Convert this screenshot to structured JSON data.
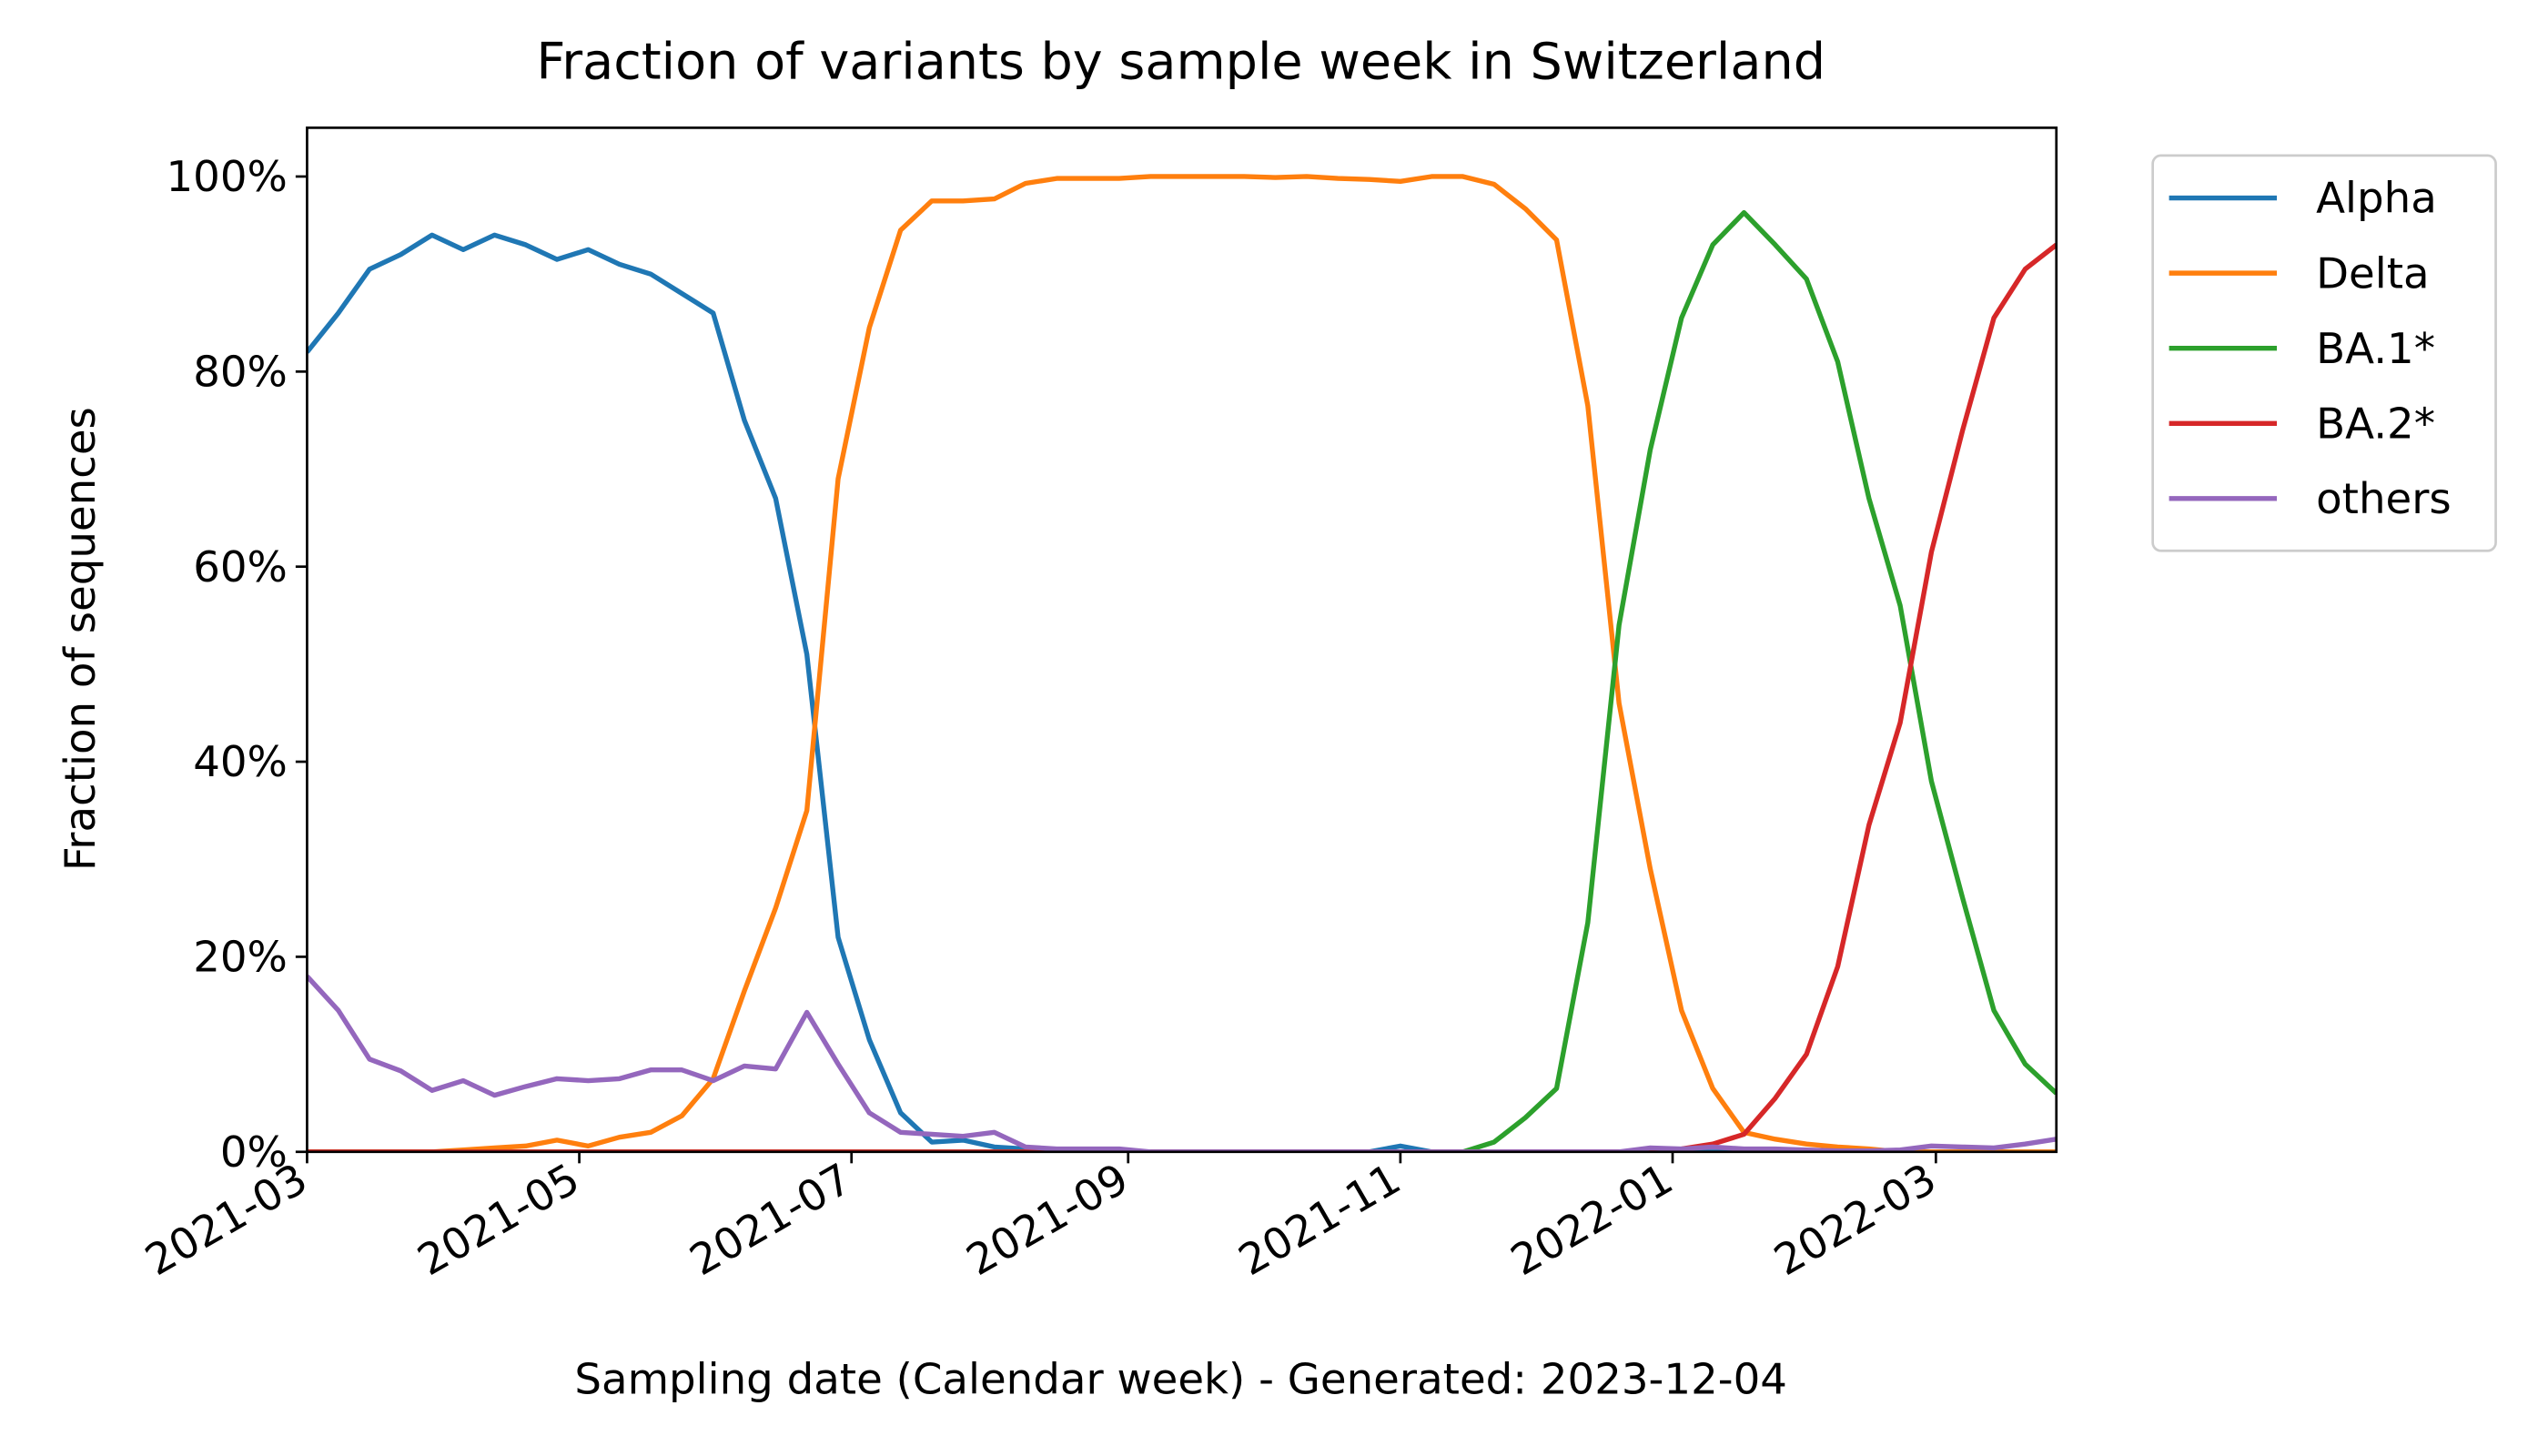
{
  "chart_data": {
    "type": "line",
    "title": "Fraction of variants by sample week in Switzerland",
    "x_label": "Sampling date (Calendar week) - Generated: 2023-12-04",
    "y_label": "Fraction of sequences",
    "x": [
      "2021-W09",
      "2021-W10",
      "2021-W11",
      "2021-W12",
      "2021-W13",
      "2021-W14",
      "2021-W15",
      "2021-W16",
      "2021-W17",
      "2021-W18",
      "2021-W19",
      "2021-W20",
      "2021-W21",
      "2021-W22",
      "2021-W23",
      "2021-W24",
      "2021-W25",
      "2021-W26",
      "2021-W27",
      "2021-W28",
      "2021-W29",
      "2021-W30",
      "2021-W31",
      "2021-W32",
      "2021-W33",
      "2021-W34",
      "2021-W35",
      "2021-W36",
      "2021-W37",
      "2021-W38",
      "2021-W39",
      "2021-W40",
      "2021-W41",
      "2021-W42",
      "2021-W43",
      "2021-W44",
      "2021-W45",
      "2021-W46",
      "2021-W47",
      "2021-W48",
      "2021-W49",
      "2021-W50",
      "2021-W51",
      "2021-W52",
      "2022-W01",
      "2022-W02",
      "2022-W03",
      "2022-W04",
      "2022-W05",
      "2022-W06",
      "2022-W07",
      "2022-W08",
      "2022-W09",
      "2022-W10",
      "2022-W11",
      "2022-W12",
      "2022-W13"
    ],
    "series": [
      {
        "name": "Alpha",
        "color": "#1f77b4",
        "values": [
          82,
          86,
          90.5,
          92,
          94,
          92.5,
          94,
          93,
          91.5,
          92.5,
          91,
          90,
          88,
          86,
          75,
          67,
          51,
          22,
          11.5,
          4,
          1,
          1.2,
          0.5,
          0.3,
          0,
          0,
          0,
          0,
          0,
          0,
          0,
          0,
          0,
          0,
          0,
          0.6,
          0,
          0,
          0,
          0,
          0,
          0,
          0,
          0,
          0,
          0,
          0,
          0,
          0,
          0,
          0,
          0,
          0,
          0,
          0,
          0,
          0
        ]
      },
      {
        "name": "Delta",
        "color": "#ff7f0e",
        "values": [
          0,
          0,
          0,
          0,
          0,
          0.2,
          0.4,
          0.6,
          1.2,
          0.6,
          1.5,
          2,
          3.7,
          7.5,
          16.5,
          25,
          35,
          69,
          84.5,
          94.5,
          97.5,
          97.5,
          97.7,
          99.3,
          99.8,
          99.8,
          99.8,
          100,
          100,
          100,
          100,
          99.9,
          100,
          99.8,
          99.7,
          99.5,
          100,
          100,
          99.2,
          96.7,
          93.5,
          76.5,
          46,
          29,
          14.5,
          6.5,
          2,
          1.3,
          0.8,
          0.5,
          0.3,
          0,
          0,
          0,
          0,
          0,
          0
        ]
      },
      {
        "name": "BA.1*",
        "color": "#2ca02c",
        "values": [
          0,
          0,
          0,
          0,
          0,
          0,
          0,
          0,
          0,
          0,
          0,
          0,
          0,
          0,
          0,
          0,
          0,
          0,
          0,
          0,
          0,
          0,
          0,
          0,
          0,
          0,
          0,
          0,
          0,
          0,
          0,
          0,
          0,
          0,
          0,
          0,
          0,
          0,
          1,
          3.5,
          6.5,
          23.5,
          54,
          72,
          85.5,
          93,
          96.3,
          93,
          89.5,
          81,
          67,
          56,
          38,
          26,
          14.5,
          9,
          6
        ]
      },
      {
        "name": "BA.2*",
        "color": "#d62728",
        "values": [
          0,
          0,
          0,
          0,
          0,
          0,
          0,
          0,
          0,
          0,
          0,
          0,
          0,
          0,
          0,
          0,
          0,
          0,
          0,
          0,
          0,
          0,
          0,
          0,
          0,
          0,
          0,
          0,
          0,
          0,
          0,
          0,
          0,
          0,
          0,
          0,
          0,
          0,
          0,
          0,
          0,
          0,
          0,
          0,
          0.3,
          0.8,
          1.8,
          5.5,
          10,
          19,
          33.5,
          44,
          61.5,
          74,
          85.5,
          90.5,
          93
        ]
      },
      {
        "name": "others",
        "color": "#9467bd",
        "values": [
          18,
          14.5,
          9.5,
          8.3,
          6.3,
          7.3,
          5.8,
          6.7,
          7.5,
          7.3,
          7.5,
          8.4,
          8.4,
          7.3,
          8.8,
          8.5,
          14.3,
          9,
          4,
          2,
          1.8,
          1.6,
          2,
          0.5,
          0.3,
          0.3,
          0.3,
          0,
          0,
          0,
          0,
          0,
          0,
          0,
          0,
          0,
          0,
          0,
          0,
          0,
          0,
          0,
          0,
          0.4,
          0.3,
          0.5,
          0.3,
          0.3,
          0.2,
          0.1,
          0.1,
          0.2,
          0.6,
          0.5,
          0.4,
          0.8,
          1.3
        ]
      }
    ],
    "xlim": [
      "2021-03",
      "2022-W13"
    ],
    "xticks": [
      "2021-03",
      "2021-05",
      "2021-07",
      "2021-09",
      "2021-11",
      "2022-01",
      "2022-03"
    ],
    "ylim": [
      0,
      105
    ],
    "yticks": [
      {
        "value": 0,
        "label": "0%"
      },
      {
        "value": 20,
        "label": "20%"
      },
      {
        "value": 40,
        "label": "40%"
      },
      {
        "value": 60,
        "label": "60%"
      },
      {
        "value": 80,
        "label": "80%"
      },
      {
        "value": 100,
        "label": "100%"
      }
    ],
    "grid": false,
    "legend": "outside upper right"
  }
}
